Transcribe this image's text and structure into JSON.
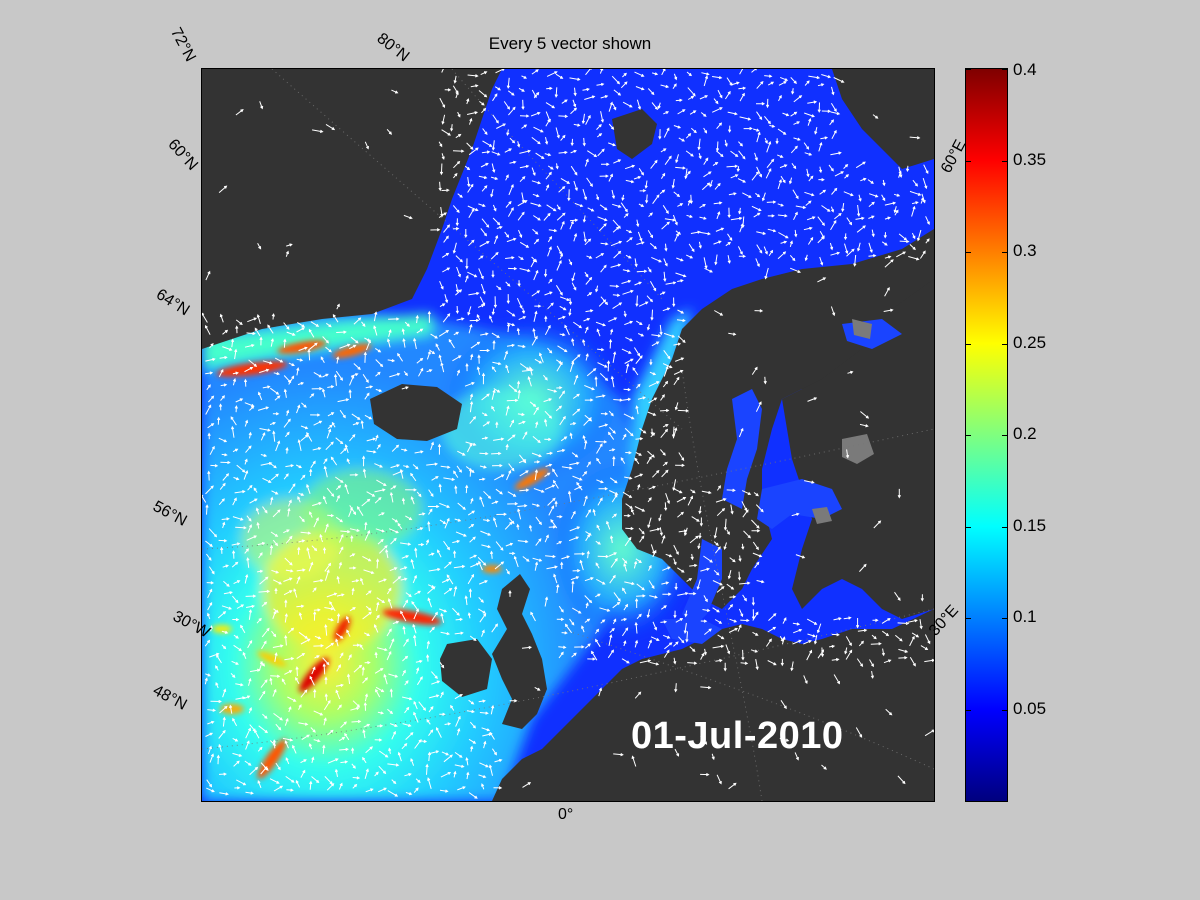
{
  "figure": {
    "title": "Every 5 vector shown",
    "date_stamp": "01-Jul-2010"
  },
  "map": {
    "region": "North Atlantic / Nordic Seas / Baltic",
    "latitude_labels": [
      "72°N",
      "60°N",
      "64°N",
      "56°N",
      "48°N"
    ],
    "parallel_labels": [
      "80°N"
    ],
    "longitude_labels": [
      "30°W",
      "0°",
      "30°E",
      "60°E"
    ],
    "colors": {
      "land": "#333333",
      "sea_ice_land_gray": "#7a7a7a",
      "vectors": "#ffffff",
      "background": "#c8c8c8"
    }
  },
  "colorbar": {
    "colormap": "jet",
    "range": [
      0,
      0.4
    ],
    "tick_labels": [
      "0.4",
      "0.35",
      "0.3",
      "0.25",
      "0.2",
      "0.15",
      "0.1",
      "0.05"
    ]
  }
}
